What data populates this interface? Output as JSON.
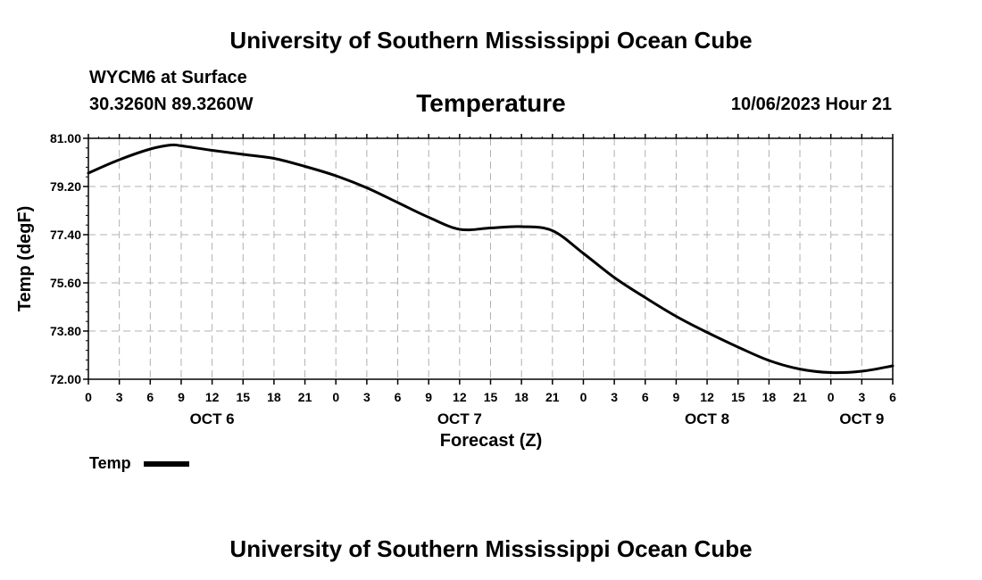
{
  "header": {
    "title": "University of Southern Mississippi Ocean Cube",
    "station": "WYCM6 at Surface",
    "coords": "30.3260N  89.3260W",
    "variable": "Temperature",
    "datetime": "10/06/2023 Hour 21"
  },
  "footer": {
    "title": "University of Southern Mississippi Ocean Cube"
  },
  "chart_data": {
    "type": "line",
    "title": "Temperature",
    "xlabel": "Forecast (Z)",
    "ylabel": "Temp (degF)",
    "ylim": [
      72.0,
      81.0
    ],
    "yticks": [
      "72.00",
      "73.80",
      "75.60",
      "77.40",
      "79.20",
      "81.00"
    ],
    "xlim_hours": [
      0,
      78
    ],
    "xtick_step_hours": 3,
    "xtick_labels": [
      "0",
      "3",
      "6",
      "9",
      "12",
      "15",
      "18",
      "21",
      "0",
      "3",
      "6",
      "9",
      "12",
      "15",
      "18",
      "21",
      "0",
      "3",
      "6",
      "9",
      "12",
      "15",
      "18",
      "21",
      "0",
      "3",
      "6"
    ],
    "day_labels": [
      {
        "label": "OCT 6",
        "hour": 12
      },
      {
        "label": "OCT 7",
        "hour": 36
      },
      {
        "label": "OCT 8",
        "hour": 60
      },
      {
        "label": "OCT 9",
        "hour": 75
      }
    ],
    "grid": true,
    "legend": {
      "position": "bottom-left",
      "entries": [
        "Temp"
      ]
    },
    "series": [
      {
        "name": "Temp",
        "x": [
          0,
          3,
          6,
          8,
          9,
          12,
          15,
          18,
          21,
          24,
          27,
          30,
          33,
          36,
          39,
          42,
          45,
          48,
          51,
          54,
          57,
          60,
          63,
          66,
          69,
          72,
          75,
          78
        ],
        "values": [
          79.7,
          80.2,
          80.6,
          80.75,
          80.72,
          80.55,
          80.4,
          80.25,
          79.95,
          79.6,
          79.15,
          78.6,
          78.05,
          77.6,
          77.65,
          77.7,
          77.55,
          76.7,
          75.8,
          75.05,
          74.35,
          73.75,
          73.2,
          72.7,
          72.38,
          72.25,
          72.3,
          72.5
        ]
      }
    ]
  }
}
